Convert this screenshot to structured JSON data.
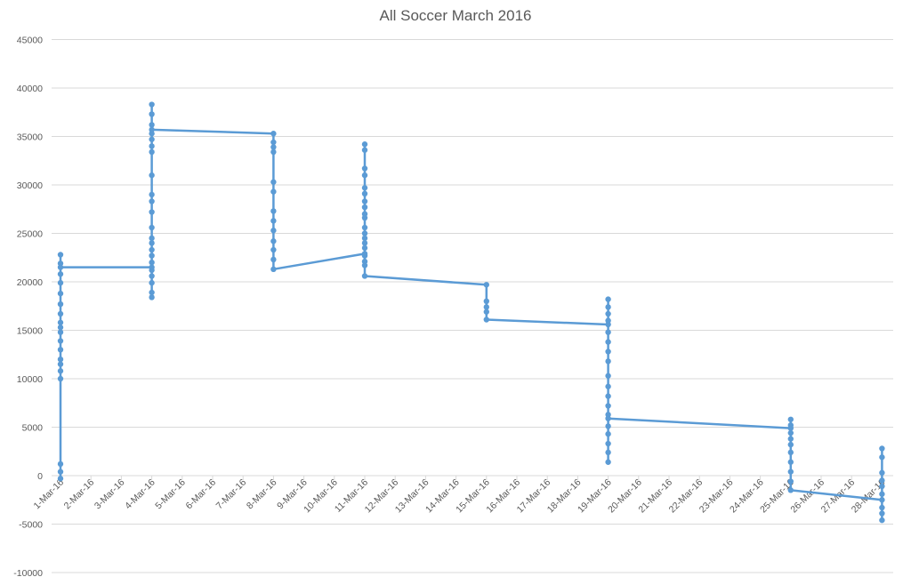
{
  "chart_data": {
    "type": "line",
    "title": "All Soccer March 2016",
    "xlabel": "",
    "ylabel": "",
    "ylim": [
      -10000,
      45000
    ],
    "grid": true,
    "legend": "none",
    "line_color": "#5B9BD5",
    "yticks": [
      -10000,
      -5000,
      0,
      5000,
      10000,
      15000,
      20000,
      25000,
      30000,
      35000,
      40000,
      45000
    ],
    "categories": [
      "1-Mar-16",
      "2-Mar-16",
      "3-Mar-16",
      "4-Mar-16",
      "5-Mar-16",
      "6-Mar-16",
      "7-Mar-16",
      "8-Mar-16",
      "9-Mar-16",
      "10-Mar-16",
      "11-Mar-16",
      "12-Mar-16",
      "13-Mar-16",
      "14-Mar-16",
      "15-Mar-16",
      "16-Mar-16",
      "17-Mar-16",
      "18-Mar-16",
      "19-Mar-16",
      "20-Mar-16",
      "21-Mar-16",
      "22-Mar-16",
      "23-Mar-16",
      "24-Mar-16",
      "25-Mar-16",
      "26-Mar-16",
      "27-Mar-16",
      "28-Mar-16"
    ],
    "series": [
      {
        "points": [
          {
            "x": "1-Mar-16",
            "y": -300
          },
          {
            "x": "1-Mar-16",
            "y": 400
          },
          {
            "x": "1-Mar-16",
            "y": 1200
          },
          {
            "x": "1-Mar-16",
            "y": 10000
          },
          {
            "x": "1-Mar-16",
            "y": 10800
          },
          {
            "x": "1-Mar-16",
            "y": 11500
          },
          {
            "x": "1-Mar-16",
            "y": 12000
          },
          {
            "x": "1-Mar-16",
            "y": 13000
          },
          {
            "x": "1-Mar-16",
            "y": 13900
          },
          {
            "x": "1-Mar-16",
            "y": 14800
          },
          {
            "x": "1-Mar-16",
            "y": 15300
          },
          {
            "x": "1-Mar-16",
            "y": 15800
          },
          {
            "x": "1-Mar-16",
            "y": 16700
          },
          {
            "x": "1-Mar-16",
            "y": 17700
          },
          {
            "x": "1-Mar-16",
            "y": 18800
          },
          {
            "x": "1-Mar-16",
            "y": 19900
          },
          {
            "x": "1-Mar-16",
            "y": 20800
          },
          {
            "x": "1-Mar-16",
            "y": 21900
          },
          {
            "x": "1-Mar-16",
            "y": 22800
          },
          {
            "x": "1-Mar-16",
            "y": 21500
          },
          {
            "x": "4-Mar-16",
            "y": 21500
          },
          {
            "x": "4-Mar-16",
            "y": 18400
          },
          {
            "x": "4-Mar-16",
            "y": 18900
          },
          {
            "x": "4-Mar-16",
            "y": 19900
          },
          {
            "x": "4-Mar-16",
            "y": 20600
          },
          {
            "x": "4-Mar-16",
            "y": 21200
          },
          {
            "x": "4-Mar-16",
            "y": 22000
          },
          {
            "x": "4-Mar-16",
            "y": 22700
          },
          {
            "x": "4-Mar-16",
            "y": 23300
          },
          {
            "x": "4-Mar-16",
            "y": 24000
          },
          {
            "x": "4-Mar-16",
            "y": 24500
          },
          {
            "x": "4-Mar-16",
            "y": 25600
          },
          {
            "x": "4-Mar-16",
            "y": 27200
          },
          {
            "x": "4-Mar-16",
            "y": 28300
          },
          {
            "x": "4-Mar-16",
            "y": 29000
          },
          {
            "x": "4-Mar-16",
            "y": 31000
          },
          {
            "x": "4-Mar-16",
            "y": 33400
          },
          {
            "x": "4-Mar-16",
            "y": 34000
          },
          {
            "x": "4-Mar-16",
            "y": 34700
          },
          {
            "x": "4-Mar-16",
            "y": 35300
          },
          {
            "x": "4-Mar-16",
            "y": 36200
          },
          {
            "x": "4-Mar-16",
            "y": 37300
          },
          {
            "x": "4-Mar-16",
            "y": 38300
          },
          {
            "x": "4-Mar-16",
            "y": 35700
          },
          {
            "x": "8-Mar-16",
            "y": 35300
          },
          {
            "x": "8-Mar-16",
            "y": 34400
          },
          {
            "x": "8-Mar-16",
            "y": 33900
          },
          {
            "x": "8-Mar-16",
            "y": 33400
          },
          {
            "x": "8-Mar-16",
            "y": 30300
          },
          {
            "x": "8-Mar-16",
            "y": 29300
          },
          {
            "x": "8-Mar-16",
            "y": 27300
          },
          {
            "x": "8-Mar-16",
            "y": 26300
          },
          {
            "x": "8-Mar-16",
            "y": 25300
          },
          {
            "x": "8-Mar-16",
            "y": 24200
          },
          {
            "x": "8-Mar-16",
            "y": 23300
          },
          {
            "x": "8-Mar-16",
            "y": 22300
          },
          {
            "x": "8-Mar-16",
            "y": 21300
          },
          {
            "x": "11-Mar-16",
            "y": 22900
          },
          {
            "x": "11-Mar-16",
            "y": 34200
          },
          {
            "x": "11-Mar-16",
            "y": 33600
          },
          {
            "x": "11-Mar-16",
            "y": 31700
          },
          {
            "x": "11-Mar-16",
            "y": 31000
          },
          {
            "x": "11-Mar-16",
            "y": 29700
          },
          {
            "x": "11-Mar-16",
            "y": 29100
          },
          {
            "x": "11-Mar-16",
            "y": 28300
          },
          {
            "x": "11-Mar-16",
            "y": 27700
          },
          {
            "x": "11-Mar-16",
            "y": 27000
          },
          {
            "x": "11-Mar-16",
            "y": 26600
          },
          {
            "x": "11-Mar-16",
            "y": 25600
          },
          {
            "x": "11-Mar-16",
            "y": 25000
          },
          {
            "x": "11-Mar-16",
            "y": 24500
          },
          {
            "x": "11-Mar-16",
            "y": 24000
          },
          {
            "x": "11-Mar-16",
            "y": 23500
          },
          {
            "x": "11-Mar-16",
            "y": 22700
          },
          {
            "x": "11-Mar-16",
            "y": 22100
          },
          {
            "x": "11-Mar-16",
            "y": 21700
          },
          {
            "x": "11-Mar-16",
            "y": 20600
          },
          {
            "x": "15-Mar-16",
            "y": 19700
          },
          {
            "x": "15-Mar-16",
            "y": 18000
          },
          {
            "x": "15-Mar-16",
            "y": 17400
          },
          {
            "x": "15-Mar-16",
            "y": 16900
          },
          {
            "x": "15-Mar-16",
            "y": 16100
          },
          {
            "x": "19-Mar-16",
            "y": 15600
          },
          {
            "x": "19-Mar-16",
            "y": 1400
          },
          {
            "x": "19-Mar-16",
            "y": 2400
          },
          {
            "x": "19-Mar-16",
            "y": 3300
          },
          {
            "x": "19-Mar-16",
            "y": 4300
          },
          {
            "x": "19-Mar-16",
            "y": 5100
          },
          {
            "x": "19-Mar-16",
            "y": 6300
          },
          {
            "x": "19-Mar-16",
            "y": 7200
          },
          {
            "x": "19-Mar-16",
            "y": 8200
          },
          {
            "x": "19-Mar-16",
            "y": 9200
          },
          {
            "x": "19-Mar-16",
            "y": 10300
          },
          {
            "x": "19-Mar-16",
            "y": 11800
          },
          {
            "x": "19-Mar-16",
            "y": 12800
          },
          {
            "x": "19-Mar-16",
            "y": 13800
          },
          {
            "x": "19-Mar-16",
            "y": 14800
          },
          {
            "x": "19-Mar-16",
            "y": 16000
          },
          {
            "x": "19-Mar-16",
            "y": 16700
          },
          {
            "x": "19-Mar-16",
            "y": 17400
          },
          {
            "x": "19-Mar-16",
            "y": 18200
          },
          {
            "x": "19-Mar-16",
            "y": 5900
          },
          {
            "x": "25-Mar-16",
            "y": 4900
          },
          {
            "x": "25-Mar-16",
            "y": 5800
          },
          {
            "x": "25-Mar-16",
            "y": 5200
          },
          {
            "x": "25-Mar-16",
            "y": 4400
          },
          {
            "x": "25-Mar-16",
            "y": 3800
          },
          {
            "x": "25-Mar-16",
            "y": 3200
          },
          {
            "x": "25-Mar-16",
            "y": 2400
          },
          {
            "x": "25-Mar-16",
            "y": 1400
          },
          {
            "x": "25-Mar-16",
            "y": 400
          },
          {
            "x": "25-Mar-16",
            "y": -600
          },
          {
            "x": "25-Mar-16",
            "y": -1500
          },
          {
            "x": "28-Mar-16",
            "y": -2500
          },
          {
            "x": "28-Mar-16",
            "y": 2800
          },
          {
            "x": "28-Mar-16",
            "y": 1900
          },
          {
            "x": "28-Mar-16",
            "y": 300
          },
          {
            "x": "28-Mar-16",
            "y": -500
          },
          {
            "x": "28-Mar-16",
            "y": -1100
          },
          {
            "x": "28-Mar-16",
            "y": -1900
          },
          {
            "x": "28-Mar-16",
            "y": -3300
          },
          {
            "x": "28-Mar-16",
            "y": -3900
          },
          {
            "x": "28-Mar-16",
            "y": -4600
          }
        ]
      }
    ]
  }
}
